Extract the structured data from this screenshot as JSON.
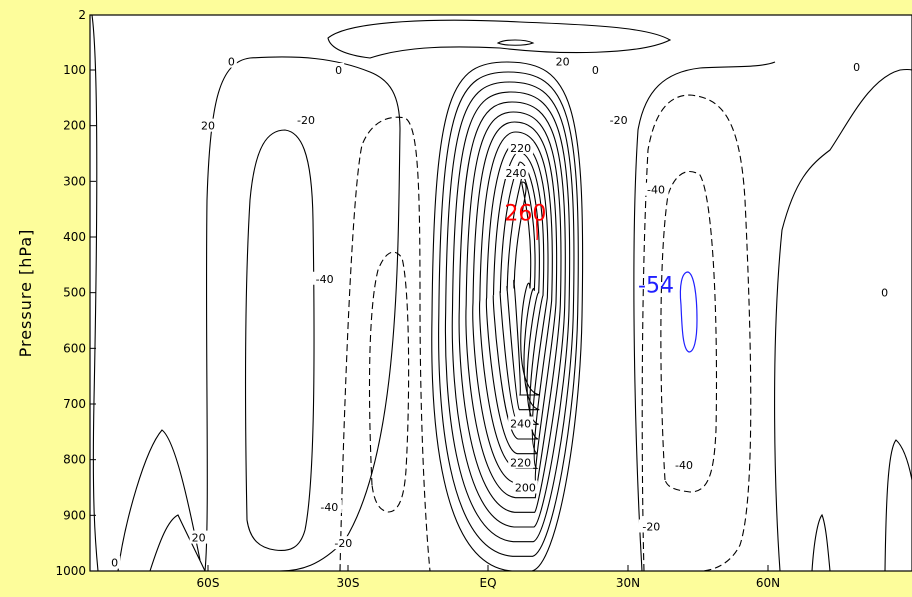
{
  "chart_data": {
    "type": "contour",
    "title": "",
    "xlabel": "",
    "ylabel": "Pressure [hPa]",
    "x_ticks": [
      "60S",
      "30S",
      "EQ",
      "30N",
      "60N"
    ],
    "x_tick_values": [
      -60,
      -30,
      0,
      30,
      60
    ],
    "xlim": [
      -90,
      90
    ],
    "y_ticks": [
      "2",
      "100",
      "200",
      "300",
      "400",
      "500",
      "600",
      "700",
      "800",
      "900",
      "1000"
    ],
    "y_tick_values": [
      2,
      100,
      200,
      300,
      400,
      500,
      600,
      700,
      800,
      900,
      1000
    ],
    "ylim": [
      1000,
      2
    ],
    "contour_interval": 20,
    "contour_labels": [
      {
        "text": "0",
        "lat": -55,
        "p": 85
      },
      {
        "text": "0",
        "lat": -32,
        "p": 100
      },
      {
        "text": "0",
        "lat": 23,
        "p": 100
      },
      {
        "text": "0",
        "lat": 79,
        "p": 95
      },
      {
        "text": "0",
        "lat": 85,
        "p": 500
      },
      {
        "text": "0",
        "lat": -80,
        "p": 985
      },
      {
        "text": "20",
        "lat": -60,
        "p": 200
      },
      {
        "text": "20",
        "lat": -62,
        "p": 940
      },
      {
        "text": "20",
        "lat": 16,
        "p": 85
      },
      {
        "text": "-20",
        "lat": -39,
        "p": 190
      },
      {
        "text": "-20",
        "lat": -31,
        "p": 950
      },
      {
        "text": "-20",
        "lat": 28,
        "p": 190
      },
      {
        "text": "-20",
        "lat": 35,
        "p": 920
      },
      {
        "text": "-40",
        "lat": -35,
        "p": 475
      },
      {
        "text": "-40",
        "lat": -34,
        "p": 885
      },
      {
        "text": "-40",
        "lat": 36,
        "p": 315
      },
      {
        "text": "-40",
        "lat": 42,
        "p": 810
      },
      {
        "text": "240",
        "lat": 6,
        "p": 285
      },
      {
        "text": "240",
        "lat": 7,
        "p": 735
      },
      {
        "text": "220",
        "lat": 7,
        "p": 240
      },
      {
        "text": "220",
        "lat": 7,
        "p": 805
      },
      {
        "text": "200",
        "lat": 8,
        "p": 850
      }
    ],
    "extremes": [
      {
        "label": "260",
        "lat": 8,
        "p": 370,
        "type": "max",
        "color": "#ff0000"
      },
      {
        "label": "-54",
        "lat": 36,
        "p": 500,
        "type": "min",
        "color": "#2020ff"
      }
    ],
    "colors": {
      "positive_contour": "#000000",
      "negative_contour": "#000000",
      "max_highlight": "#ff0000",
      "min_highlight": "#2020ff",
      "background": "#fdfd9b",
      "plot_background": "#ffffff"
    }
  }
}
